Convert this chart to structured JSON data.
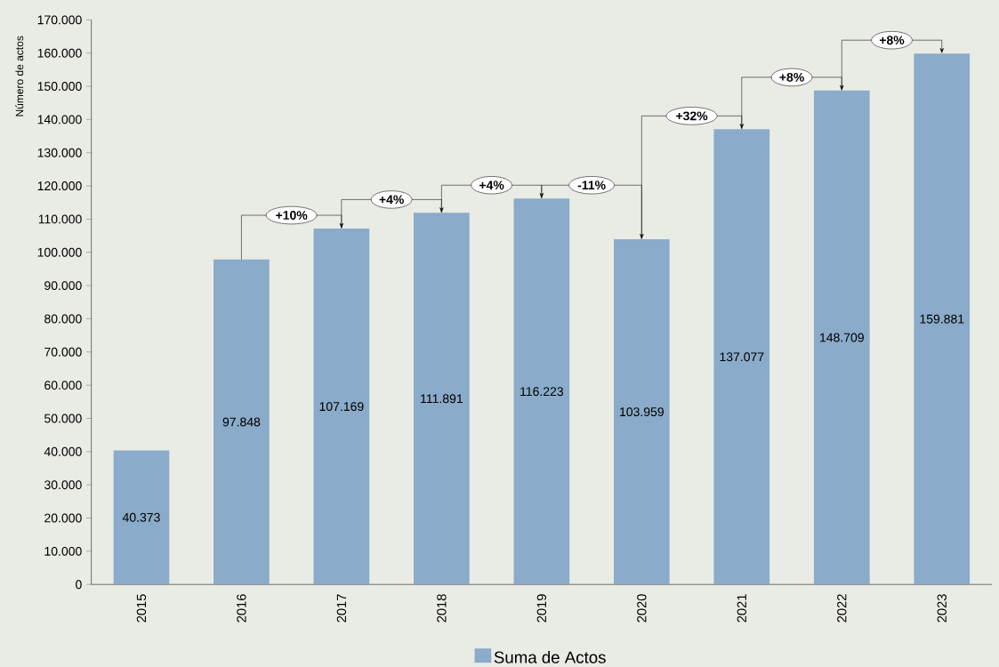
{
  "chart_data": {
    "type": "bar",
    "ylabel": "Número de actos",
    "categories": [
      "2015",
      "2016",
      "2017",
      "2018",
      "2019",
      "2020",
      "2021",
      "2022",
      "2023"
    ],
    "series": [
      {
        "name": "Suma de Actos",
        "color": "#8aabc9",
        "values": [
          40373,
          97848,
          107169,
          111891,
          116223,
          103959,
          137077,
          148709,
          159881
        ]
      }
    ],
    "value_labels": [
      "40.373",
      "97.848",
      "107.169",
      "111.891",
      "116.223",
      "103.959",
      "137.077",
      "148.709",
      "159.881"
    ],
    "ylim": [
      0,
      170000
    ],
    "yticks": [
      0,
      {
        "value": 10000,
        "label": "10.000"
      },
      {
        "value": 20000,
        "label": "20.000"
      },
      {
        "value": 30000,
        "label": "30.000"
      },
      {
        "value": 40000,
        "label": "40.000"
      },
      {
        "value": 50000,
        "label": "50.000"
      },
      {
        "value": 60000,
        "label": "60.000"
      },
      {
        "value": 70000,
        "label": "70.000"
      },
      {
        "value": 80000,
        "label": "80.000"
      },
      {
        "value": 90000,
        "label": "90.000"
      },
      {
        "value": 100000,
        "label": "100.000"
      },
      {
        "value": 110000,
        "label": "110.000"
      },
      {
        "value": 120000,
        "label": "120.000"
      },
      {
        "value": 130000,
        "label": "130.000"
      },
      {
        "value": 140000,
        "label": "140.000"
      },
      {
        "value": 150000,
        "label": "150.000"
      },
      {
        "value": 160000,
        "label": "160.000"
      },
      {
        "value": 170000,
        "label": "170.000"
      }
    ],
    "annotations": [
      "+10%",
      "+4%",
      "+4%",
      "-11%",
      "+32%",
      "+8%",
      "+8%"
    ],
    "grid": false,
    "legend": "bottom"
  }
}
